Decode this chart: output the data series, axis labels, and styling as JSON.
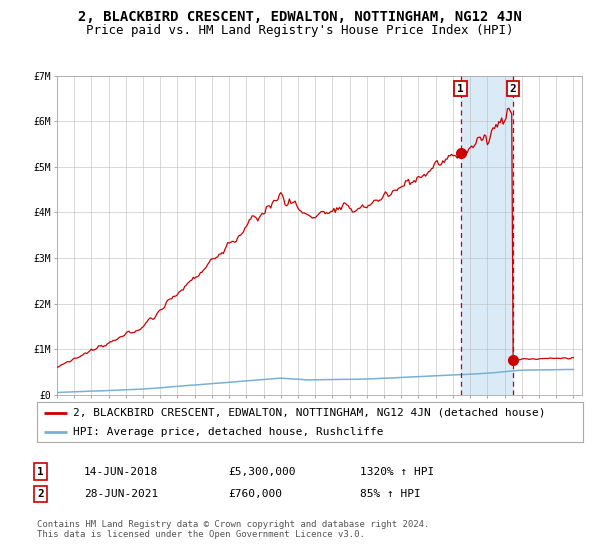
{
  "title": "2, BLACKBIRD CRESCENT, EDWALTON, NOTTINGHAM, NG12 4JN",
  "subtitle": "Price paid vs. HM Land Registry's House Price Index (HPI)",
  "ylim": [
    0,
    7000000
  ],
  "yticks": [
    0,
    1000000,
    2000000,
    3000000,
    4000000,
    5000000,
    6000000,
    7000000
  ],
  "ytick_labels": [
    "£0",
    "£1M",
    "£2M",
    "£3M",
    "£4M",
    "£5M",
    "£6M",
    "£7M"
  ],
  "sale1_date": 2018.45,
  "sale1_price": 5300000,
  "sale1_label": "14-JUN-2018",
  "sale1_value_str": "£5,300,000",
  "sale1_hpi_str": "1320% ↑ HPI",
  "sale2_date": 2021.48,
  "sale2_price": 760000,
  "sale2_label": "28-JUN-2021",
  "sale2_value_str": "£760,000",
  "sale2_hpi_str": "85% ↑ HPI",
  "line_color": "#cc0000",
  "hpi_color": "#7ab0d4",
  "background_color": "#ffffff",
  "plot_bg_color": "#ffffff",
  "shade_color": "#daeaf7",
  "grid_color": "#bbbbbb",
  "legend_label_red": "2, BLACKBIRD CRESCENT, EDWALTON, NOTTINGHAM, NG12 4JN (detached house)",
  "legend_label_blue": "HPI: Average price, detached house, Rushcliffe",
  "footer": "Contains HM Land Registry data © Crown copyright and database right 2024.\nThis data is licensed under the Open Government Licence v3.0.",
  "title_fontsize": 10,
  "subtitle_fontsize": 9,
  "tick_fontsize": 7,
  "legend_fontsize": 8,
  "xmin": 1995,
  "xmax": 2025.5
}
